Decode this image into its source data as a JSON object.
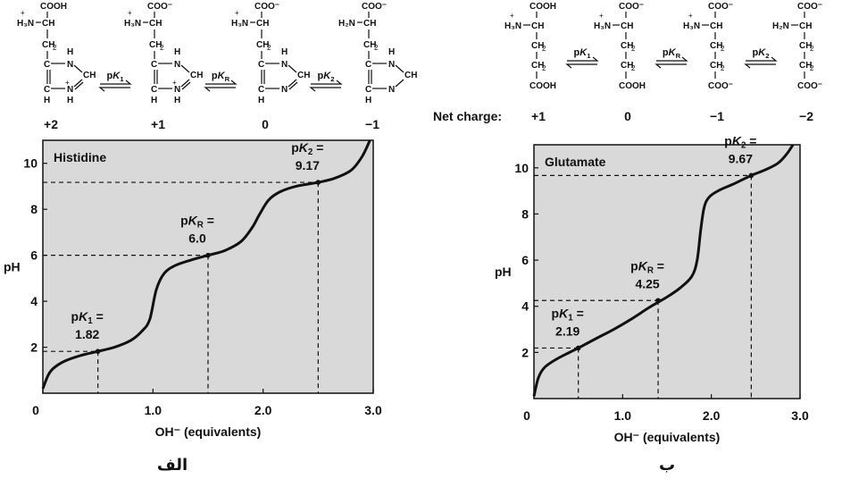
{
  "charts": [
    {
      "id": "histidine",
      "struct_frame": {
        "x0": 15,
        "xs": 120
      },
      "plot_frame": {
        "x": 48,
        "y": 157,
        "w": 370,
        "h": 283,
        "xmax": 3.0,
        "ymax": 11.0
      },
      "species": [
        {
          "title_top": "COOH",
          "amine": "H₃N",
          "amine_plus": true,
          "charge": "+2"
        },
        {
          "title_top": "COO⁻",
          "amine": "H₃N",
          "amine_plus": true,
          "charge": "+1"
        },
        {
          "title_top": "COO⁻",
          "amine": "H₃N",
          "amine_plus": true,
          "charge": "0"
        },
        {
          "title_top": "COO⁻",
          "amine": "H₂N",
          "amine_plus": false,
          "charge": "−1"
        }
      ],
      "equilibria": [
        "pK1",
        "pKR",
        "pK2"
      ],
      "chart_data": {
        "type": "line",
        "title": "Histidine",
        "xlabel": "OH⁻  (equivalents)",
        "ylabel": "pH",
        "xlim": [
          0,
          3.0
        ],
        "ylim": [
          0,
          11
        ],
        "xticks": [
          "0",
          "1.0",
          "2.0",
          "3.0"
        ],
        "yticks": [
          "2",
          "4",
          "6",
          "8",
          "10"
        ],
        "grid": false,
        "points": [
          [
            0,
            0.2
          ],
          [
            0.05,
            0.8
          ],
          [
            0.1,
            1.1
          ],
          [
            0.2,
            1.4
          ],
          [
            0.35,
            1.65
          ],
          [
            0.5,
            1.82
          ],
          [
            0.65,
            2.0
          ],
          [
            0.8,
            2.3
          ],
          [
            0.9,
            2.7
          ],
          [
            0.97,
            3.2
          ],
          [
            1.03,
            4.5
          ],
          [
            1.1,
            5.2
          ],
          [
            1.2,
            5.55
          ],
          [
            1.35,
            5.8
          ],
          [
            1.5,
            6.0
          ],
          [
            1.65,
            6.2
          ],
          [
            1.8,
            6.6
          ],
          [
            1.9,
            7.2
          ],
          [
            1.97,
            7.8
          ],
          [
            2.05,
            8.4
          ],
          [
            2.15,
            8.75
          ],
          [
            2.3,
            9.0
          ],
          [
            2.5,
            9.17
          ],
          [
            2.65,
            9.35
          ],
          [
            2.8,
            9.7
          ],
          [
            2.9,
            10.3
          ],
          [
            2.97,
            11.0
          ]
        ],
        "annotations": [
          {
            "label": "pK1 =",
            "value": "1.82",
            "x": 0.5,
            "y": 1.82
          },
          {
            "label": "pKR =",
            "value": "6.0",
            "x": 1.5,
            "y": 6.0
          },
          {
            "label": "pK2 =",
            "value": "9.17",
            "x": 2.5,
            "y": 9.17
          }
        ]
      },
      "panel_label": "الف"
    },
    {
      "id": "glutamate",
      "struct_frame": {
        "x0": 563,
        "xs": 100
      },
      "plot_frame": {
        "x": 598,
        "y": 162,
        "w": 298,
        "h": 284,
        "xmax": 3.0,
        "ymax": 11.0
      },
      "net_charge_label": "Net charge:",
      "species": [
        {
          "top": "COOH",
          "bottom": "COOH",
          "amine": "H₃N",
          "amine_plus": true,
          "charge": "+1"
        },
        {
          "top": "COO⁻",
          "bottom": "COOH",
          "amine": "H₃N",
          "amine_plus": true,
          "charge": "0"
        },
        {
          "top": "COO⁻",
          "bottom": "COO⁻",
          "amine": "H₃N",
          "amine_plus": true,
          "charge": "−1"
        },
        {
          "top": "COO⁻",
          "bottom": "COO⁻",
          "amine": "H₂N",
          "amine_plus": false,
          "charge": "−2"
        }
      ],
      "equilibria": [
        "pK1",
        "pKR",
        "pK2"
      ],
      "chart_data": {
        "type": "line",
        "title": "Glutamate",
        "xlabel": "OH⁻  (equivalents)",
        "ylabel": "pH",
        "xlim": [
          0,
          3.0
        ],
        "ylim": [
          0,
          11
        ],
        "xticks": [
          "0",
          "1.0",
          "2.0",
          "3.0"
        ],
        "yticks": [
          "2",
          "4",
          "6",
          "8",
          "10"
        ],
        "grid": false,
        "points": [
          [
            0,
            0.1
          ],
          [
            0.05,
            0.9
          ],
          [
            0.12,
            1.35
          ],
          [
            0.25,
            1.7
          ],
          [
            0.4,
            2.0
          ],
          [
            0.5,
            2.19
          ],
          [
            0.7,
            2.6
          ],
          [
            0.9,
            3.0
          ],
          [
            1.1,
            3.45
          ],
          [
            1.3,
            3.95
          ],
          [
            1.5,
            4.4
          ],
          [
            1.65,
            4.8
          ],
          [
            1.78,
            5.3
          ],
          [
            1.84,
            6.0
          ],
          [
            1.88,
            7.3
          ],
          [
            1.92,
            8.3
          ],
          [
            1.98,
            8.75
          ],
          [
            2.1,
            9.05
          ],
          [
            2.25,
            9.3
          ],
          [
            2.45,
            9.67
          ],
          [
            2.6,
            9.9
          ],
          [
            2.75,
            10.2
          ],
          [
            2.85,
            10.6
          ],
          [
            2.92,
            11.0
          ]
        ],
        "annotations": [
          {
            "label": "pK1 =",
            "value": "2.19",
            "x": 0.5,
            "y": 2.19
          },
          {
            "label": "pKR =",
            "value": "4.25",
            "x": 1.4,
            "y": 4.25
          },
          {
            "label": "pK2 =",
            "value": "9.67",
            "x": 2.45,
            "y": 9.67
          }
        ]
      },
      "panel_label": "ب"
    }
  ]
}
